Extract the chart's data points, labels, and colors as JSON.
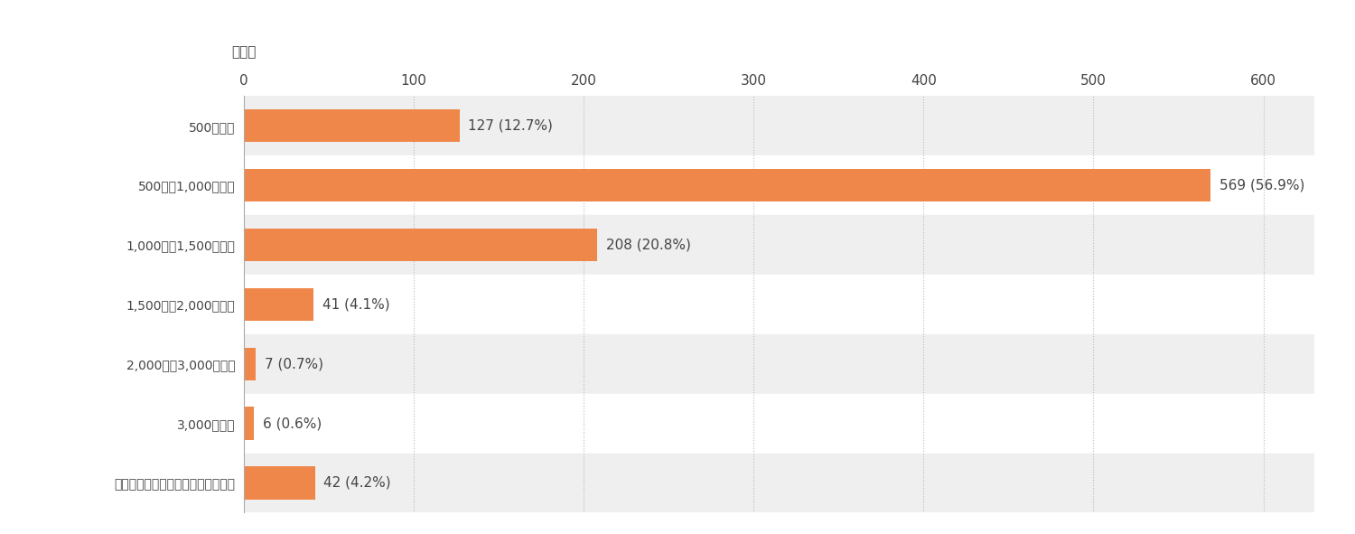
{
  "categories": [
    "500円未満",
    "500円〜1,000円未満",
    "1,000円〜1,500円未満",
    "1,500円〜2,000円未満",
    "2,000円〜3,000円未満",
    "3,000円以上",
    "利用したことがないのでわからない"
  ],
  "values": [
    127,
    569,
    208,
    41,
    7,
    6,
    42
  ],
  "percentages": [
    "12.7%",
    "56.9%",
    "20.8%",
    "4.1%",
    "0.7%",
    "0.6%",
    "4.2%"
  ],
  "bar_color": "#F0874A",
  "bar_height": 0.55,
  "xlim": [
    0,
    630
  ],
  "xticks": [
    0,
    100,
    200,
    300,
    400,
    500,
    600
  ],
  "xlabel": "（人）",
  "bg_color_odd": "#EFEFEF",
  "bg_color_even": "#FFFFFF",
  "grid_color": "#BBBBBB",
  "tick_fontsize": 11,
  "value_label_fontsize": 11,
  "category_fontsize": 12,
  "unit_fontsize": 11,
  "text_color": "#444444"
}
